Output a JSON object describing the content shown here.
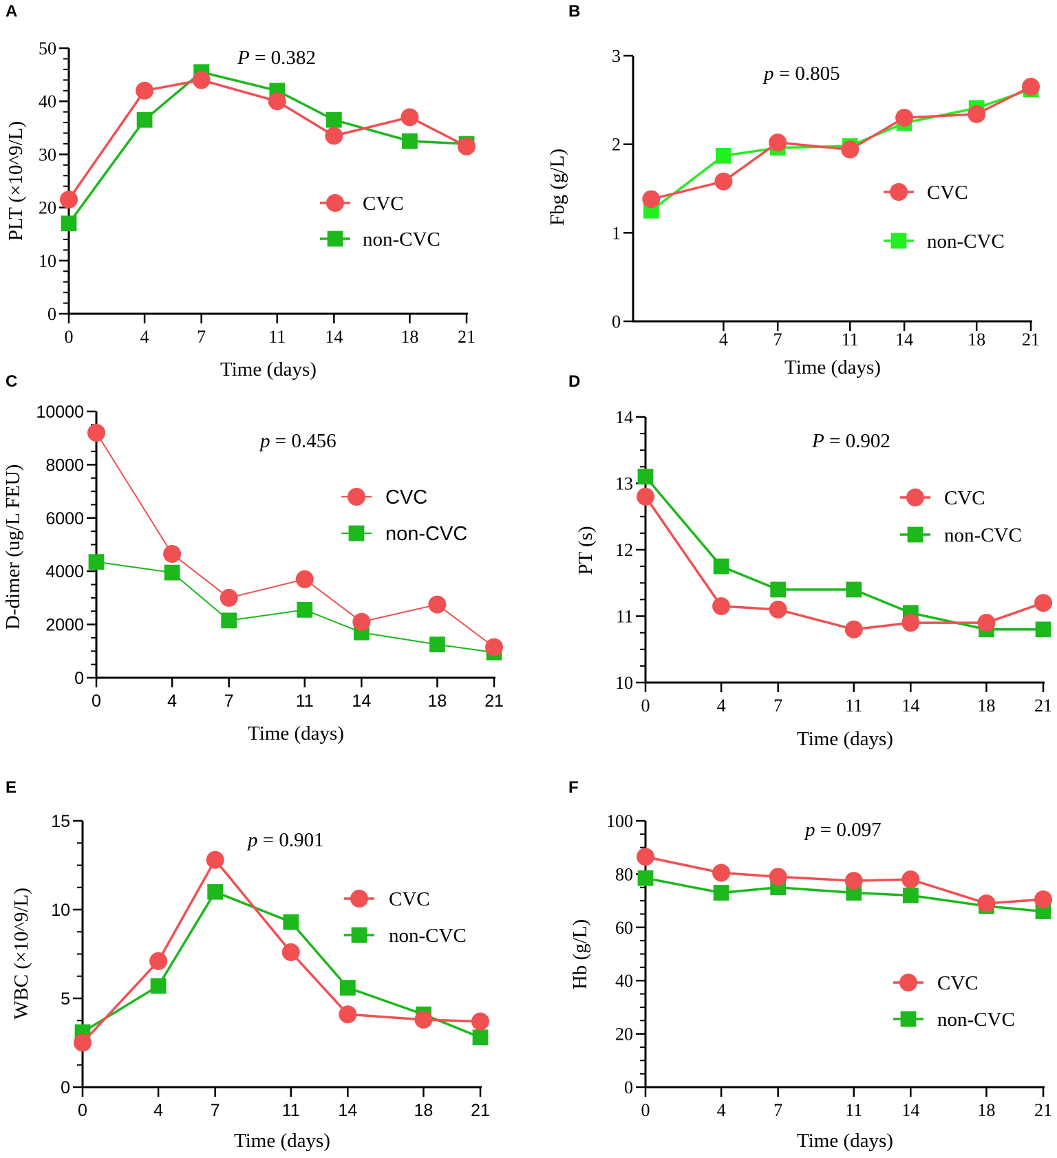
{
  "chart_data": [
    {
      "panel": "A",
      "type": "line",
      "p_label": "P",
      "p_value": "= 0.382",
      "xlabel": "Time (days)",
      "ylabel": "PLT (×10^9/L)",
      "x_ticks": [
        "0",
        "4",
        "7",
        "11",
        "14",
        "18",
        "21"
      ],
      "y_ticks": [
        "0",
        "10",
        "20",
        "30",
        "40",
        "50"
      ],
      "ylim": [
        0,
        50
      ],
      "series": [
        {
          "name": "CVC",
          "color": "#f05052",
          "marker": "circle",
          "values": [
            21.5,
            42,
            44,
            40,
            33.5,
            37,
            31.5
          ]
        },
        {
          "name": "non-CVC",
          "color": "#1cb81c",
          "marker": "square",
          "values": [
            17,
            36.5,
            45.5,
            42,
            36.5,
            32.5,
            32
          ]
        }
      ]
    },
    {
      "panel": "B",
      "type": "line",
      "p_label": "p",
      "p_value": "= 0.805",
      "xlabel": "Time (days)",
      "ylabel": "Fbg (g/L)",
      "x_ticks": [
        "",
        "4",
        "7",
        "11",
        "14",
        "18",
        "21"
      ],
      "y_ticks": [
        "0",
        "1",
        "2",
        "3"
      ],
      "ylim": [
        0,
        3
      ],
      "series": [
        {
          "name": "CVC",
          "color": "#f05052",
          "marker": "circle",
          "values": [
            1.38,
            1.58,
            2.02,
            1.94,
            2.3,
            2.34,
            2.65
          ]
        },
        {
          "name": "non-CVC",
          "color": "#22ee22",
          "marker": "square",
          "values": [
            1.25,
            1.87,
            1.96,
            1.98,
            2.24,
            2.41,
            2.62
          ]
        }
      ]
    },
    {
      "panel": "C",
      "type": "line",
      "p_label": "p",
      "p_value": "= 0.456",
      "xlabel": "Time (days)",
      "ylabel": "D-dimer (ug/L FEU)",
      "x_ticks": [
        "0",
        "4",
        "7",
        "11",
        "14",
        "18",
        "21"
      ],
      "y_ticks": [
        "0",
        "2000",
        "4000",
        "6000",
        "8000",
        "10000"
      ],
      "ylim": [
        0,
        10000
      ],
      "series": [
        {
          "name": "CVC",
          "color": "#f05052",
          "marker": "circle",
          "values": [
            9200,
            4650,
            3000,
            3700,
            2100,
            2750,
            1150
          ]
        },
        {
          "name": "non-CVC",
          "color": "#1cb81c",
          "marker": "square",
          "values": [
            4350,
            3950,
            2150,
            2550,
            1700,
            1250,
            950
          ]
        }
      ]
    },
    {
      "panel": "D",
      "type": "line",
      "p_label": "P",
      "p_value": "= 0.902",
      "xlabel": "Time (days)",
      "ylabel": "PT (s)",
      "x_ticks": [
        "0",
        "4",
        "7",
        "11",
        "14",
        "18",
        "21"
      ],
      "y_ticks": [
        "10",
        "11",
        "12",
        "13",
        "14"
      ],
      "ylim": [
        10,
        14
      ],
      "series": [
        {
          "name": "CVC",
          "color": "#f05052",
          "marker": "circle",
          "values": [
            12.8,
            11.15,
            11.1,
            10.8,
            10.9,
            10.9,
            11.2
          ]
        },
        {
          "name": "non-CVC",
          "color": "#1cb81c",
          "marker": "square",
          "values": [
            13.1,
            11.75,
            11.4,
            11.4,
            11.05,
            10.8,
            10.8
          ]
        }
      ]
    },
    {
      "panel": "E",
      "type": "line",
      "p_label": "p",
      "p_value": "= 0.901",
      "xlabel": "Time (days)",
      "ylabel": "WBC (×10^9/L)",
      "x_ticks": [
        "0",
        "4",
        "7",
        "11",
        "14",
        "18",
        "21"
      ],
      "y_ticks": [
        "0",
        "5",
        "10",
        "15"
      ],
      "ylim": [
        0,
        15
      ],
      "series": [
        {
          "name": "CVC",
          "color": "#f05052",
          "marker": "circle",
          "values": [
            2.5,
            7.1,
            12.8,
            7.6,
            4.1,
            3.8,
            3.7
          ]
        },
        {
          "name": "non-CVC",
          "color": "#1cb81c",
          "marker": "square",
          "values": [
            3.1,
            5.7,
            11,
            9.3,
            5.6,
            4.1,
            2.8
          ]
        }
      ]
    },
    {
      "panel": "F",
      "type": "line",
      "p_label": "p",
      "p_value": "= 0.097",
      "xlabel": "Time (days)",
      "ylabel": "Hb (g/L)",
      "x_ticks": [
        "0",
        "4",
        "7",
        "11",
        "14",
        "18",
        "21"
      ],
      "y_ticks": [
        "0",
        "20",
        "40",
        "60",
        "80",
        "100"
      ],
      "ylim": [
        0,
        100
      ],
      "series": [
        {
          "name": "CVC",
          "color": "#f05052",
          "marker": "circle",
          "values": [
            86.5,
            80.5,
            79,
            77.5,
            78,
            69,
            70.5
          ]
        },
        {
          "name": "non-CVC",
          "color": "#1cb81c",
          "marker": "square",
          "values": [
            78.5,
            73,
            75,
            73,
            72,
            68,
            66
          ]
        }
      ]
    }
  ]
}
